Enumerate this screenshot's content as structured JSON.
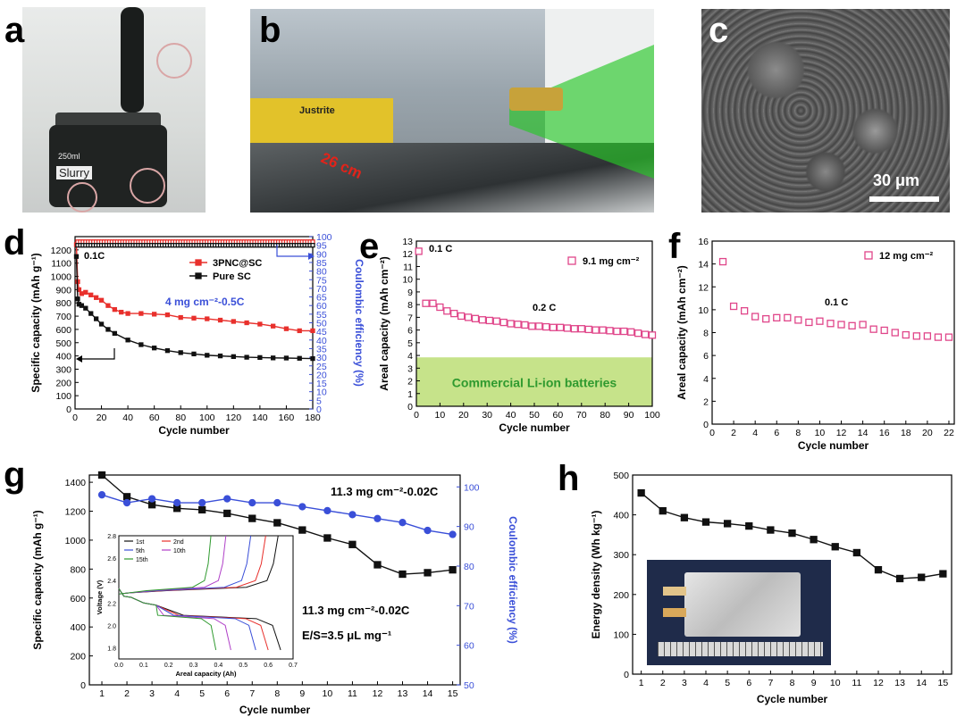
{
  "panels": {
    "a": {
      "letter": "a",
      "jar_label": "Slurry",
      "jar_volume": "250ml"
    },
    "b": {
      "letter": "b",
      "cabinet_label": "Justrite",
      "width_annotation": "26 cm"
    },
    "c": {
      "letter": "c",
      "scale_bar": "30 μm"
    },
    "d": {
      "letter": "d"
    },
    "e": {
      "letter": "e",
      "shaded_band_label": "Commercial Li-ion batteries"
    },
    "f": {
      "letter": "f"
    },
    "g": {
      "letter": "g"
    },
    "h": {
      "letter": "h"
    }
  },
  "colors": {
    "red": "#e8302c",
    "black": "#111111",
    "blue": "#3a4fd8",
    "pink": "#e0468a",
    "green_band": "#c6e38a",
    "green_text": "#2f9a2f"
  },
  "chart_data": [
    {
      "id": "d",
      "type": "line",
      "xlabel": "Cycle number",
      "ylabel": "Specific capacity (mAh g⁻¹)",
      "y2label": "Coulombic efficiency (%)",
      "xlim": [
        0,
        180
      ],
      "ylim": [
        0,
        1300
      ],
      "y2lim": [
        0,
        100
      ],
      "xticks": [
        0,
        20,
        40,
        60,
        80,
        100,
        120,
        140,
        160,
        180
      ],
      "yticks": [
        0,
        100,
        200,
        300,
        400,
        500,
        600,
        700,
        800,
        900,
        1000,
        1100,
        1200
      ],
      "y2ticks": [
        0,
        5,
        10,
        15,
        20,
        25,
        30,
        35,
        40,
        45,
        50,
        55,
        60,
        65,
        70,
        75,
        80,
        85,
        90,
        95,
        100
      ],
      "annotations": [
        "0.1C",
        "4 mg cm⁻²-0.5C"
      ],
      "series": [
        {
          "name": "3PNC@SC",
          "color": "#e8302c",
          "axis": "left",
          "x": [
            1,
            2,
            3,
            5,
            8,
            12,
            16,
            20,
            25,
            30,
            35,
            40,
            50,
            60,
            70,
            80,
            90,
            100,
            110,
            120,
            130,
            140,
            150,
            160,
            170,
            180
          ],
          "y": [
            1240,
            960,
            900,
            870,
            880,
            860,
            840,
            820,
            780,
            750,
            730,
            720,
            720,
            715,
            710,
            690,
            685,
            680,
            670,
            660,
            650,
            640,
            625,
            605,
            590,
            590
          ]
        },
        {
          "name": "Pure SC",
          "color": "#111111",
          "axis": "left",
          "x": [
            1,
            2,
            3,
            5,
            8,
            12,
            16,
            20,
            25,
            30,
            40,
            50,
            60,
            70,
            80,
            90,
            100,
            110,
            120,
            130,
            140,
            150,
            160,
            170,
            180
          ],
          "y": [
            1150,
            830,
            790,
            780,
            760,
            720,
            680,
            640,
            600,
            570,
            520,
            485,
            460,
            440,
            425,
            415,
            405,
            400,
            395,
            390,
            388,
            385,
            384,
            382,
            380
          ]
        },
        {
          "name": "3PNC@SC CE",
          "color": "#e8302c",
          "axis": "right",
          "style": "open",
          "x": [
            1,
            180
          ],
          "y": [
            97,
            97
          ]
        },
        {
          "name": "Pure SC CE",
          "color": "#111111",
          "axis": "right",
          "style": "open",
          "x": [
            1,
            180
          ],
          "y": [
            95,
            95
          ]
        }
      ],
      "legend": [
        "3PNC@SC",
        "Pure SC"
      ]
    },
    {
      "id": "e",
      "type": "scatter",
      "xlabel": "Cycle number",
      "ylabel": "Areal capacity (mAh cm⁻²)",
      "xlim": [
        0,
        100
      ],
      "ylim": [
        0,
        13
      ],
      "xticks": [
        0,
        10,
        20,
        30,
        40,
        50,
        60,
        70,
        80,
        90,
        100
      ],
      "yticks": [
        0,
        1,
        2,
        3,
        4,
        5,
        6,
        7,
        8,
        9,
        10,
        11,
        12,
        13
      ],
      "annotations": [
        "0.1 C",
        "0.2 C"
      ],
      "legend": [
        "9.1 mg cm⁻²"
      ],
      "band": [
        0,
        3.85
      ],
      "series": [
        {
          "name": "9.1 mg cm⁻²",
          "color": "#e0468a",
          "x": [
            1,
            4,
            7,
            10,
            13,
            16,
            19,
            22,
            25,
            28,
            31,
            34,
            37,
            40,
            43,
            46,
            49,
            52,
            55,
            58,
            61,
            64,
            67,
            70,
            73,
            76,
            79,
            82,
            85,
            88,
            91,
            94,
            97,
            100
          ],
          "y": [
            12.2,
            8.1,
            8.1,
            7.8,
            7.5,
            7.3,
            7.1,
            7.0,
            6.9,
            6.8,
            6.75,
            6.7,
            6.6,
            6.5,
            6.45,
            6.4,
            6.3,
            6.3,
            6.25,
            6.2,
            6.2,
            6.15,
            6.1,
            6.1,
            6.05,
            6.0,
            6.0,
            5.95,
            5.9,
            5.9,
            5.85,
            5.75,
            5.65,
            5.6
          ]
        }
      ]
    },
    {
      "id": "f",
      "type": "scatter",
      "xlabel": "Cycle number",
      "ylabel": "Areal capacity (mAh cm⁻²)",
      "xlim": [
        0,
        22.5
      ],
      "ylim": [
        0,
        16
      ],
      "xticks": [
        0,
        2,
        4,
        6,
        8,
        10,
        12,
        14,
        16,
        18,
        20,
        22
      ],
      "yticks": [
        0,
        2,
        4,
        6,
        8,
        10,
        12,
        14,
        16
      ],
      "annotations": [
        "0.1 C"
      ],
      "legend": [
        "12 mg cm⁻²"
      ],
      "series": [
        {
          "name": "12 mg cm⁻²",
          "color": "#e0468a",
          "x": [
            1,
            2,
            3,
            4,
            5,
            6,
            7,
            8,
            9,
            10,
            11,
            12,
            13,
            14,
            15,
            16,
            17,
            18,
            19,
            20,
            21,
            22
          ],
          "y": [
            14.2,
            10.3,
            9.9,
            9.4,
            9.2,
            9.3,
            9.3,
            9.1,
            8.9,
            9.0,
            8.8,
            8.7,
            8.6,
            8.7,
            8.3,
            8.2,
            8.0,
            7.8,
            7.7,
            7.7,
            7.6,
            7.6
          ]
        }
      ]
    },
    {
      "id": "g",
      "type": "line",
      "xlabel": "Cycle number",
      "ylabel": "Specific capacity (mAh g⁻¹)",
      "y2label": "Coulombic efficiency (%)",
      "xlim": [
        0.5,
        15.3
      ],
      "ylim": [
        0,
        1450
      ],
      "y2lim": [
        50,
        103
      ],
      "xticks": [
        1,
        2,
        3,
        4,
        5,
        6,
        7,
        8,
        9,
        10,
        11,
        12,
        13,
        14,
        15
      ],
      "yticks": [
        0,
        200,
        400,
        600,
        800,
        1000,
        1200,
        1400
      ],
      "y2ticks": [
        50,
        60,
        70,
        80,
        90,
        100
      ],
      "annotations": [
        "11.3 mg cm⁻²-0.02C",
        "11.3 mg cm⁻²-0.02C",
        "E/S=3.5 μL mg⁻¹"
      ],
      "series": [
        {
          "name": "Specific capacity",
          "color": "#111111",
          "axis": "left",
          "x": [
            1,
            2,
            3,
            4,
            5,
            6,
            7,
            8,
            9,
            10,
            11,
            12,
            13,
            14,
            15
          ],
          "y": [
            1450,
            1300,
            1245,
            1220,
            1210,
            1185,
            1150,
            1120,
            1070,
            1015,
            970,
            830,
            765,
            775,
            795
          ]
        },
        {
          "name": "Coulombic efficiency",
          "color": "#3a4fd8",
          "axis": "right",
          "x": [
            1,
            2,
            3,
            4,
            5,
            6,
            7,
            8,
            9,
            10,
            11,
            12,
            13,
            14,
            15
          ],
          "y": [
            98,
            96,
            97,
            96,
            96,
            97,
            96,
            96,
            95,
            94,
            93,
            92,
            91,
            89,
            88
          ]
        }
      ],
      "inset": {
        "xlabel": "Areal capacity (Ah)",
        "ylabel": "Voltage (V)",
        "xlim": [
          0,
          0.7
        ],
        "ylim": [
          1.7,
          2.8
        ],
        "xticks": [
          0.0,
          0.1,
          0.2,
          0.3,
          0.4,
          0.5,
          0.6,
          0.7
        ],
        "yticks": [
          1.8,
          2.0,
          2.2,
          2.4,
          2.6,
          2.8
        ],
        "legend": [
          "1st",
          "2nd",
          "5th",
          "10th",
          "15th"
        ],
        "legend_colors": [
          "#111111",
          "#e8302c",
          "#3a4fd8",
          "#b040c8",
          "#2f9a2f"
        ],
        "discharge_end": [
          0.65,
          0.6,
          0.55,
          0.45,
          0.39
        ],
        "charge_end": [
          0.64,
          0.59,
          0.53,
          0.43,
          0.37
        ]
      }
    },
    {
      "id": "h",
      "type": "line",
      "xlabel": "Cycle number",
      "ylabel": "Energy density (Wh kg⁻¹)",
      "xlim": [
        0.6,
        15.4
      ],
      "ylim": [
        0,
        500
      ],
      "xticks": [
        1,
        2,
        3,
        4,
        5,
        6,
        7,
        8,
        9,
        10,
        11,
        12,
        13,
        14,
        15
      ],
      "yticks": [
        0,
        100,
        200,
        300,
        400,
        500
      ],
      "series": [
        {
          "name": "Energy density",
          "color": "#111111",
          "x": [
            1,
            2,
            3,
            4,
            5,
            6,
            7,
            8,
            9,
            10,
            11,
            12,
            13,
            14,
            15
          ],
          "y": [
            455,
            410,
            393,
            382,
            378,
            372,
            362,
            354,
            338,
            320,
            305,
            262,
            240,
            243,
            252
          ]
        }
      ]
    }
  ]
}
